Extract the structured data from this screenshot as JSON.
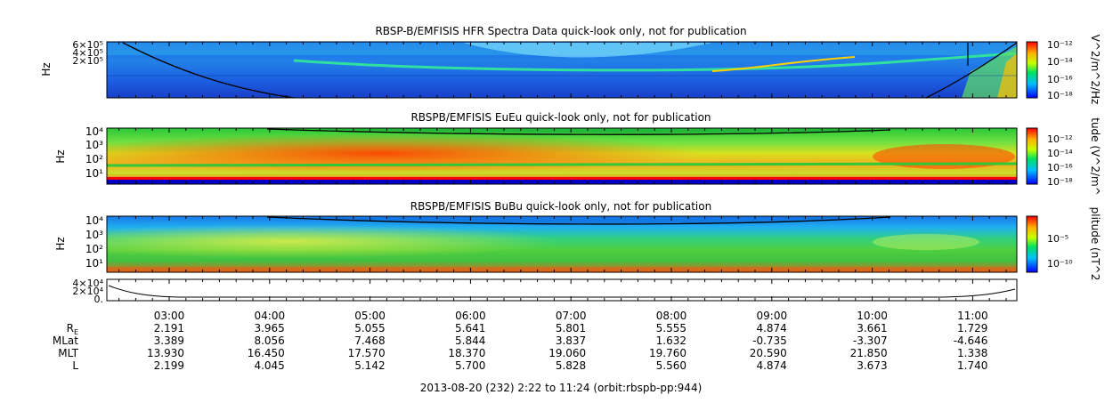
{
  "footer": "2013-08-20 (232) 2:22 to 11:24 (orbit:rbspb-pp:944)",
  "chart_data": [
    {
      "type": "heatmap",
      "title": "RBSP-B/EMFISIS  HFR Spectra Data quick-look only, not for publication",
      "ylabel": "Hz",
      "y_ticks": [
        "6×10⁵",
        "4×10⁵",
        "2×10⁵"
      ],
      "colorbar": {
        "label": "V^2/m^2/Hz",
        "ticks": [
          "10⁻¹²",
          "10⁻¹⁴",
          "10⁻¹⁶",
          "10⁻¹⁸"
        ]
      }
    },
    {
      "type": "heatmap",
      "title": "RBSPB/EMFISIS  EuEu quick-look only, not for publication",
      "ylabel": "Hz",
      "y_ticks": [
        "10⁴",
        "10³",
        "10²",
        "10¹"
      ],
      "colorbar": {
        "label": "tude (V^2/m^",
        "ticks": [
          "10⁻¹²",
          "10⁻¹⁴",
          "10⁻¹⁶",
          "10⁻¹⁸"
        ]
      }
    },
    {
      "type": "heatmap",
      "title": "RBSPB/EMFISIS  BuBu quick-look only, not for publication",
      "ylabel": "Hz",
      "y_ticks": [
        "10⁴",
        "10³",
        "10²",
        "10¹"
      ],
      "colorbar": {
        "label": "plitude (nT^2",
        "ticks": [
          "10⁻⁵",
          "10⁻¹⁰"
        ]
      }
    },
    {
      "type": "line",
      "y_ticks": [
        "4×10⁴",
        "2×10⁴",
        "0."
      ]
    }
  ],
  "time_axis": {
    "labels": [
      "03:00",
      "04:00",
      "05:00",
      "06:00",
      "07:00",
      "08:00",
      "09:00",
      "10:00",
      "11:00"
    ],
    "rows": [
      {
        "label": "R",
        "sub": "E",
        "values": [
          "2.191",
          "3.965",
          "5.055",
          "5.641",
          "5.801",
          "5.555",
          "4.874",
          "3.661",
          "1.729"
        ]
      },
      {
        "label": "MLat",
        "values": [
          "3.389",
          "8.056",
          "7.468",
          "5.844",
          "3.837",
          "1.632",
          "-0.735",
          "-3.307",
          "-4.646"
        ]
      },
      {
        "label": "MLT",
        "values": [
          "13.930",
          "16.450",
          "17.570",
          "18.370",
          "19.060",
          "19.760",
          "20.590",
          "21.850",
          "1.338"
        ]
      },
      {
        "label": "L",
        "values": [
          "2.199",
          "4.045",
          "5.142",
          "5.700",
          "5.828",
          "5.560",
          "4.874",
          "3.673",
          "1.740"
        ]
      }
    ]
  }
}
